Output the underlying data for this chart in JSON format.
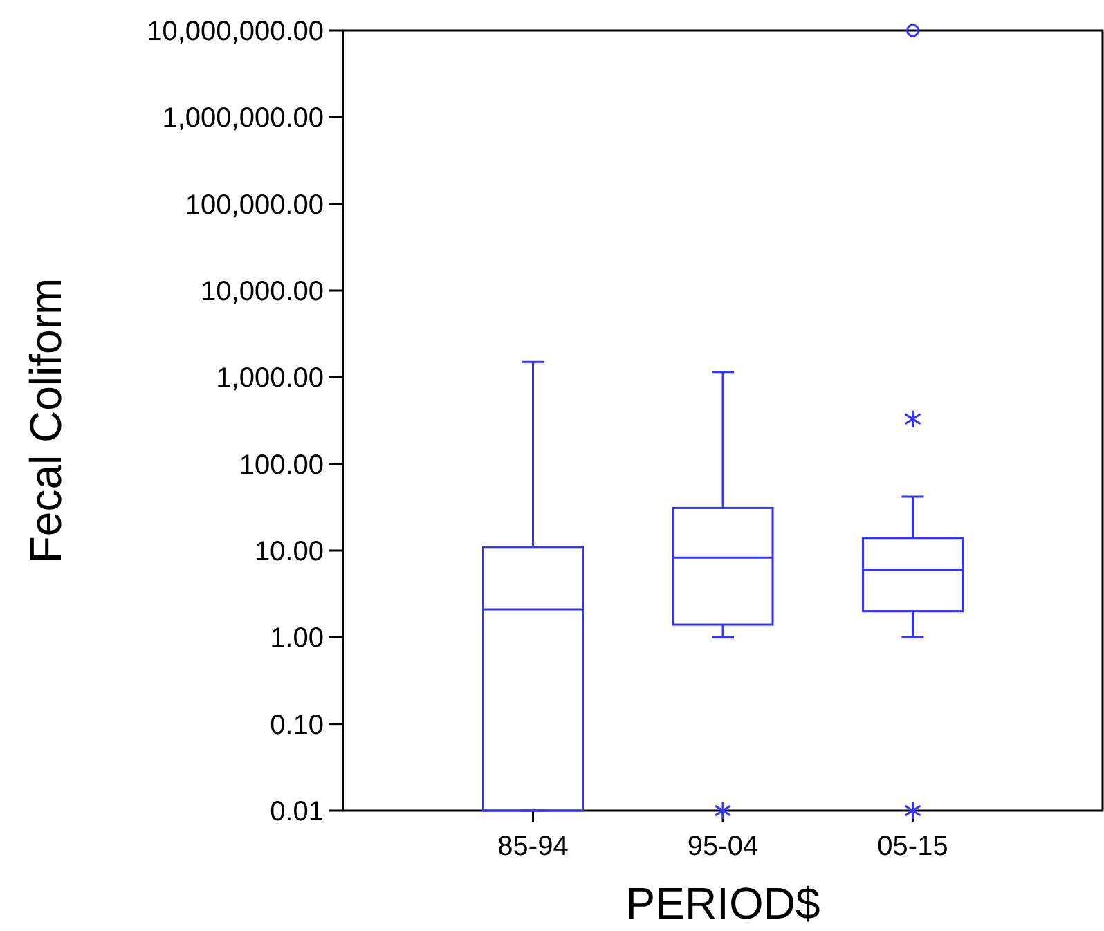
{
  "chart_data": {
    "type": "box",
    "xlabel": "PERIOD$",
    "ylabel": "Fecal Coliform",
    "categories": [
      "85-94",
      "95-04",
      "05-15"
    ],
    "log": true,
    "color": "#3333ff",
    "boxes": [
      {
        "low": 0.01,
        "q1": 0.01,
        "median": 2.1,
        "q3": 11,
        "high": 1500
      },
      {
        "low": 1,
        "q1": 1.4,
        "median": 8.3,
        "q3": 31,
        "high": 1150,
        "outliers": [
          0.01
        ]
      },
      {
        "low": 1,
        "q1": 2,
        "median": 6,
        "q3": 14,
        "high": 42,
        "outliers": [
          330,
          0.01,
          10000000
        ]
      }
    ],
    "ylim": [
      0.01,
      10000000
    ],
    "yticks": [
      {
        "value": 0.01,
        "label": "0.01"
      },
      {
        "value": 0.1,
        "label": "0.10"
      },
      {
        "value": 1,
        "label": "1.00"
      },
      {
        "value": 10,
        "label": "10.00"
      },
      {
        "value": 100,
        "label": "100.00"
      },
      {
        "value": 1000,
        "label": "1,000.00"
      },
      {
        "value": 10000,
        "label": "10,000.00"
      },
      {
        "value": 100000,
        "label": "100,000.00"
      },
      {
        "value": 1000000,
        "label": "1,000,000.00"
      },
      {
        "value": 10000000,
        "label": "10,000,000.00"
      }
    ],
    "grid": false
  }
}
